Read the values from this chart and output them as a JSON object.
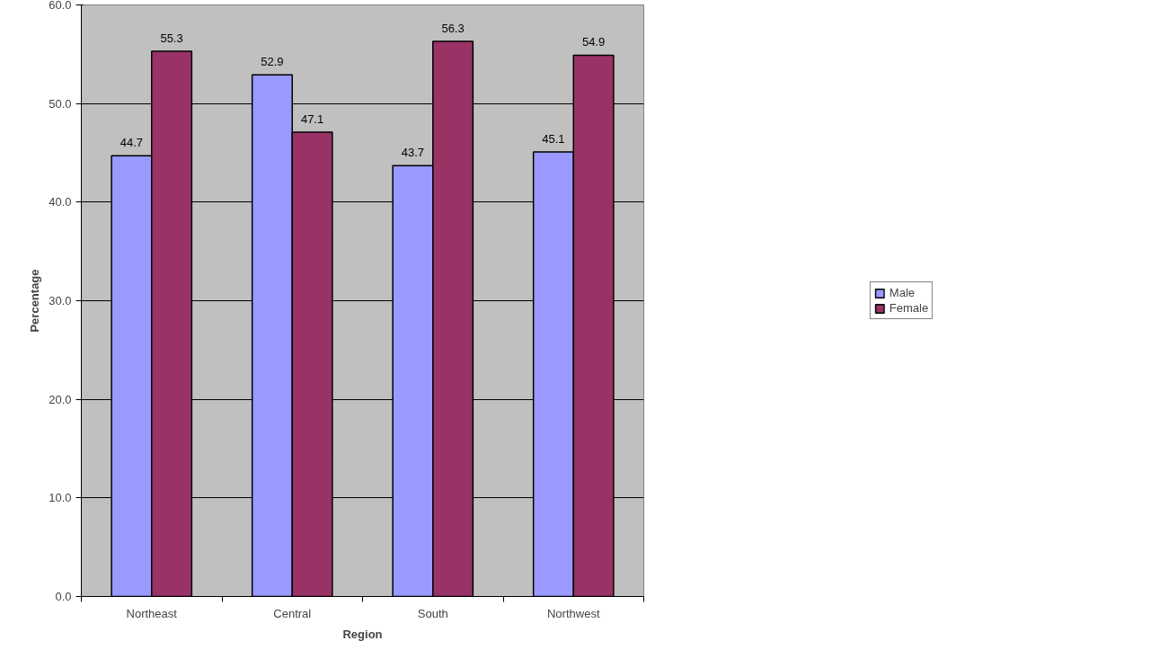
{
  "chart_data": {
    "type": "bar",
    "xlabel": "Region",
    "ylabel": "Percentage",
    "categories": [
      "Northeast",
      "Central",
      "South",
      "Northwest"
    ],
    "series": [
      {
        "name": "Male",
        "color": "#9999ff",
        "values": [
          44.7,
          52.9,
          43.7,
          45.1
        ]
      },
      {
        "name": "Female",
        "color": "#993366",
        "values": [
          55.3,
          47.1,
          56.3,
          54.9
        ]
      }
    ],
    "ylim": [
      0,
      60
    ],
    "yticks": [
      {
        "value": 0,
        "label": "0.0"
      },
      {
        "value": 10,
        "label": "10.0"
      },
      {
        "value": 20,
        "label": "20.0"
      },
      {
        "value": 30,
        "label": "30.0"
      },
      {
        "value": 40,
        "label": "40.0"
      },
      {
        "value": 50,
        "label": "50.0"
      },
      {
        "value": 60,
        "label": "60.0"
      }
    ],
    "grid": "y",
    "legend": "right",
    "data_labels": true
  }
}
